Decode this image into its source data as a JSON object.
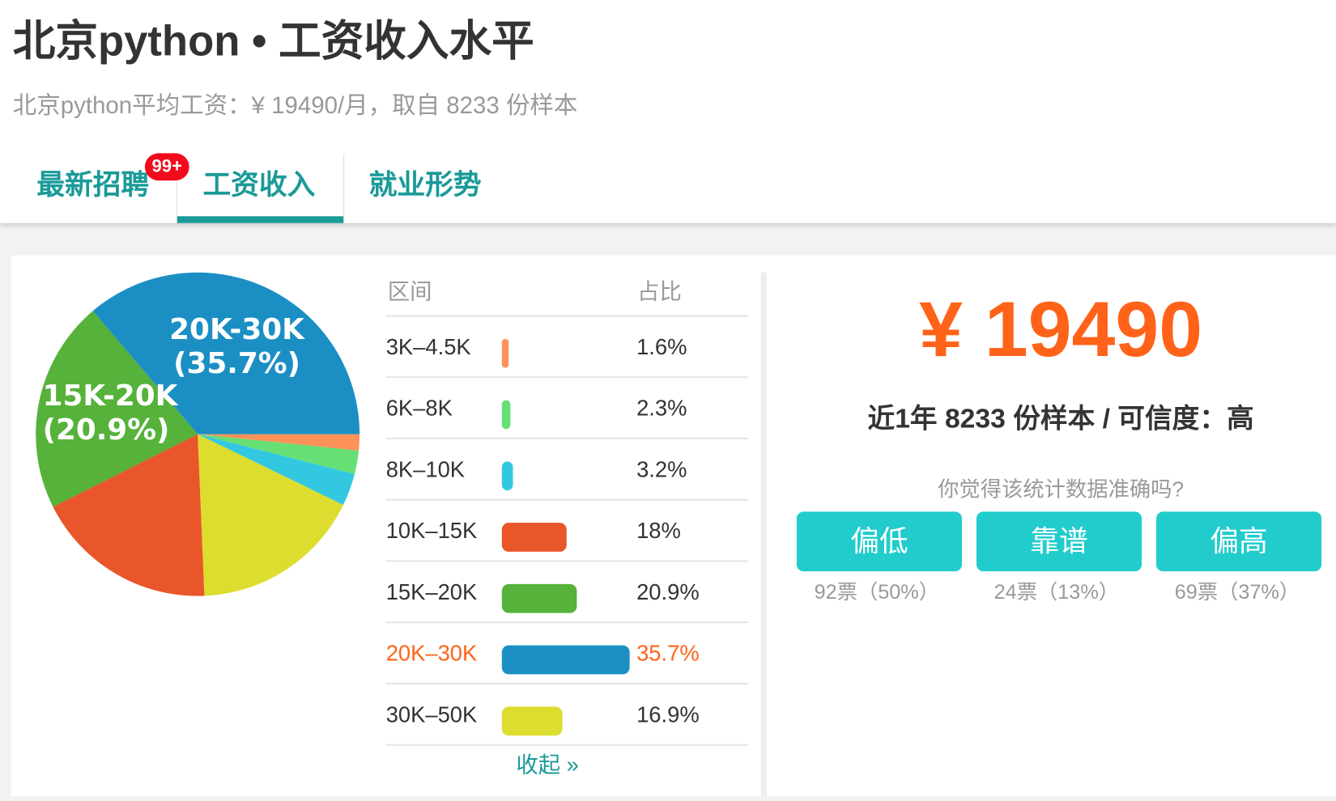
{
  "header": {
    "title": "北京python • 工资收入水平",
    "subtitle": "北京python平均工资：¥ 19490/月，取自 8233 份样本"
  },
  "tabs": [
    {
      "label": "最新招聘",
      "badge": "99+"
    },
    {
      "label": "工资收入",
      "active": true
    },
    {
      "label": "就业形势"
    }
  ],
  "table": {
    "col_range": "区间",
    "col_share": "占比",
    "collapse_label": "收起 »"
  },
  "chart_data": {
    "type": "pie",
    "categories": [
      "3K–4.5K",
      "6K–8K",
      "8K–10K",
      "10K–15K",
      "15K–20K",
      "20K–30K",
      "30K–50K"
    ],
    "values": [
      1.6,
      2.3,
      3.2,
      18,
      20.9,
      35.7,
      16.9
    ],
    "display": [
      "1.6%",
      "2.3%",
      "3.2%",
      "18%",
      "20.9%",
      "35.7%",
      "16.9%"
    ],
    "colors": [
      "#fd9259",
      "#66df74",
      "#32c9e0",
      "#e9562a",
      "#56b23a",
      "#1b8fc4",
      "#dcdd2e"
    ],
    "highlight": "20K–30K",
    "pie_order": [
      0,
      1,
      2,
      6,
      3,
      4,
      5
    ],
    "slice_labels": [
      {
        "index": 5,
        "line1": "20K-30K",
        "line2": "(35.7%)"
      },
      {
        "index": 4,
        "line1": "15K-20K",
        "line2": "(20.9%)"
      }
    ]
  },
  "summary": {
    "average": "¥ 19490",
    "sample_line": "近1年 8233 份样本 / 可信度：高",
    "question": "你觉得该统计数据准确吗?",
    "votes": [
      {
        "label": "偏低",
        "count": "92票（50%）"
      },
      {
        "label": "靠谱",
        "count": "24票（13%）"
      },
      {
        "label": "偏高",
        "count": "69票（37%）"
      }
    ]
  },
  "colors": {
    "accent": "#1a9a98",
    "highlight": "#ff6319",
    "button": "#22cccc",
    "badge": "#f20a1d"
  }
}
